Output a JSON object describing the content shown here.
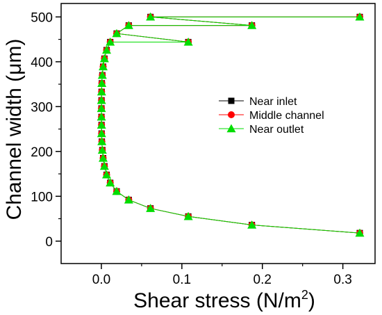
{
  "chart_data": {
    "type": "scatter",
    "title": "",
    "xlabel": "Shear stress (N/m",
    "xlabel_superscript": "2",
    "xlabel_suffix": ")",
    "ylabel": "Channel width (μm)",
    "xlim": [
      -0.05,
      0.34
    ],
    "ylim": [
      -50,
      530
    ],
    "x_ticks": [
      0.0,
      0.1,
      0.2,
      0.3
    ],
    "x_tick_labels": [
      "0.0",
      "0.1",
      "0.2",
      "0.3"
    ],
    "y_ticks": [
      0,
      100,
      200,
      300,
      400,
      500
    ],
    "y_tick_labels": [
      "0",
      "100",
      "200",
      "300",
      "400",
      "500"
    ],
    "grid": false,
    "legend_position": "center-right",
    "series": [
      {
        "name": "Near inlet",
        "marker": "square",
        "color": "#000000",
        "x": [
          0.321,
          0.187,
          0.108,
          0.061,
          0.034,
          0.019,
          0.011,
          0.0065,
          0.0038,
          0.0022,
          0.0012,
          0.0006,
          0.0003,
          0.0002,
          0.0001,
          0.0001,
          0.0002,
          0.0003,
          0.0006,
          0.0012,
          0.0022,
          0.0038,
          0.0065,
          0.011,
          0.019,
          0.034,
          0.061,
          0.108,
          0.187,
          0.321
        ],
        "y": [
          18,
          36,
          55,
          73,
          92,
          111,
          130,
          148,
          167,
          185,
          203,
          222,
          240,
          259,
          277,
          296,
          314,
          333,
          352,
          370,
          389,
          407,
          426,
          444,
          463,
          481,
          500,
          444,
          481,
          500
        ]
      },
      {
        "name": "Middle channel",
        "marker": "circle",
        "color": "#ff0000",
        "x": [
          0.321,
          0.187,
          0.108,
          0.061,
          0.034,
          0.019,
          0.011,
          0.0065,
          0.0038,
          0.0022,
          0.0012,
          0.0006,
          0.0003,
          0.0002,
          0.0001,
          0.0001,
          0.0002,
          0.0003,
          0.0006,
          0.0012,
          0.0022,
          0.0038,
          0.0065,
          0.011,
          0.019,
          0.034,
          0.061,
          0.108,
          0.187,
          0.321
        ],
        "y": [
          18,
          36,
          55,
          73,
          92,
          111,
          130,
          148,
          167,
          185,
          203,
          222,
          240,
          259,
          277,
          296,
          314,
          333,
          352,
          370,
          389,
          407,
          426,
          444,
          463,
          481,
          500,
          444,
          481,
          500
        ]
      },
      {
        "name": "Near outlet",
        "marker": "triangle",
        "color": "#00dd00",
        "x": [
          0.321,
          0.187,
          0.108,
          0.061,
          0.034,
          0.019,
          0.011,
          0.0065,
          0.0038,
          0.0022,
          0.0012,
          0.0006,
          0.0003,
          0.0002,
          0.0001,
          0.0001,
          0.0002,
          0.0003,
          0.0006,
          0.0012,
          0.0022,
          0.0038,
          0.0065,
          0.011,
          0.019,
          0.034,
          0.061,
          0.108,
          0.187,
          0.321
        ],
        "y": [
          18,
          36,
          55,
          73,
          92,
          111,
          130,
          148,
          167,
          185,
          203,
          222,
          240,
          259,
          277,
          296,
          314,
          333,
          352,
          370,
          389,
          407,
          426,
          444,
          463,
          481,
          500,
          444,
          481,
          500
        ]
      }
    ]
  }
}
